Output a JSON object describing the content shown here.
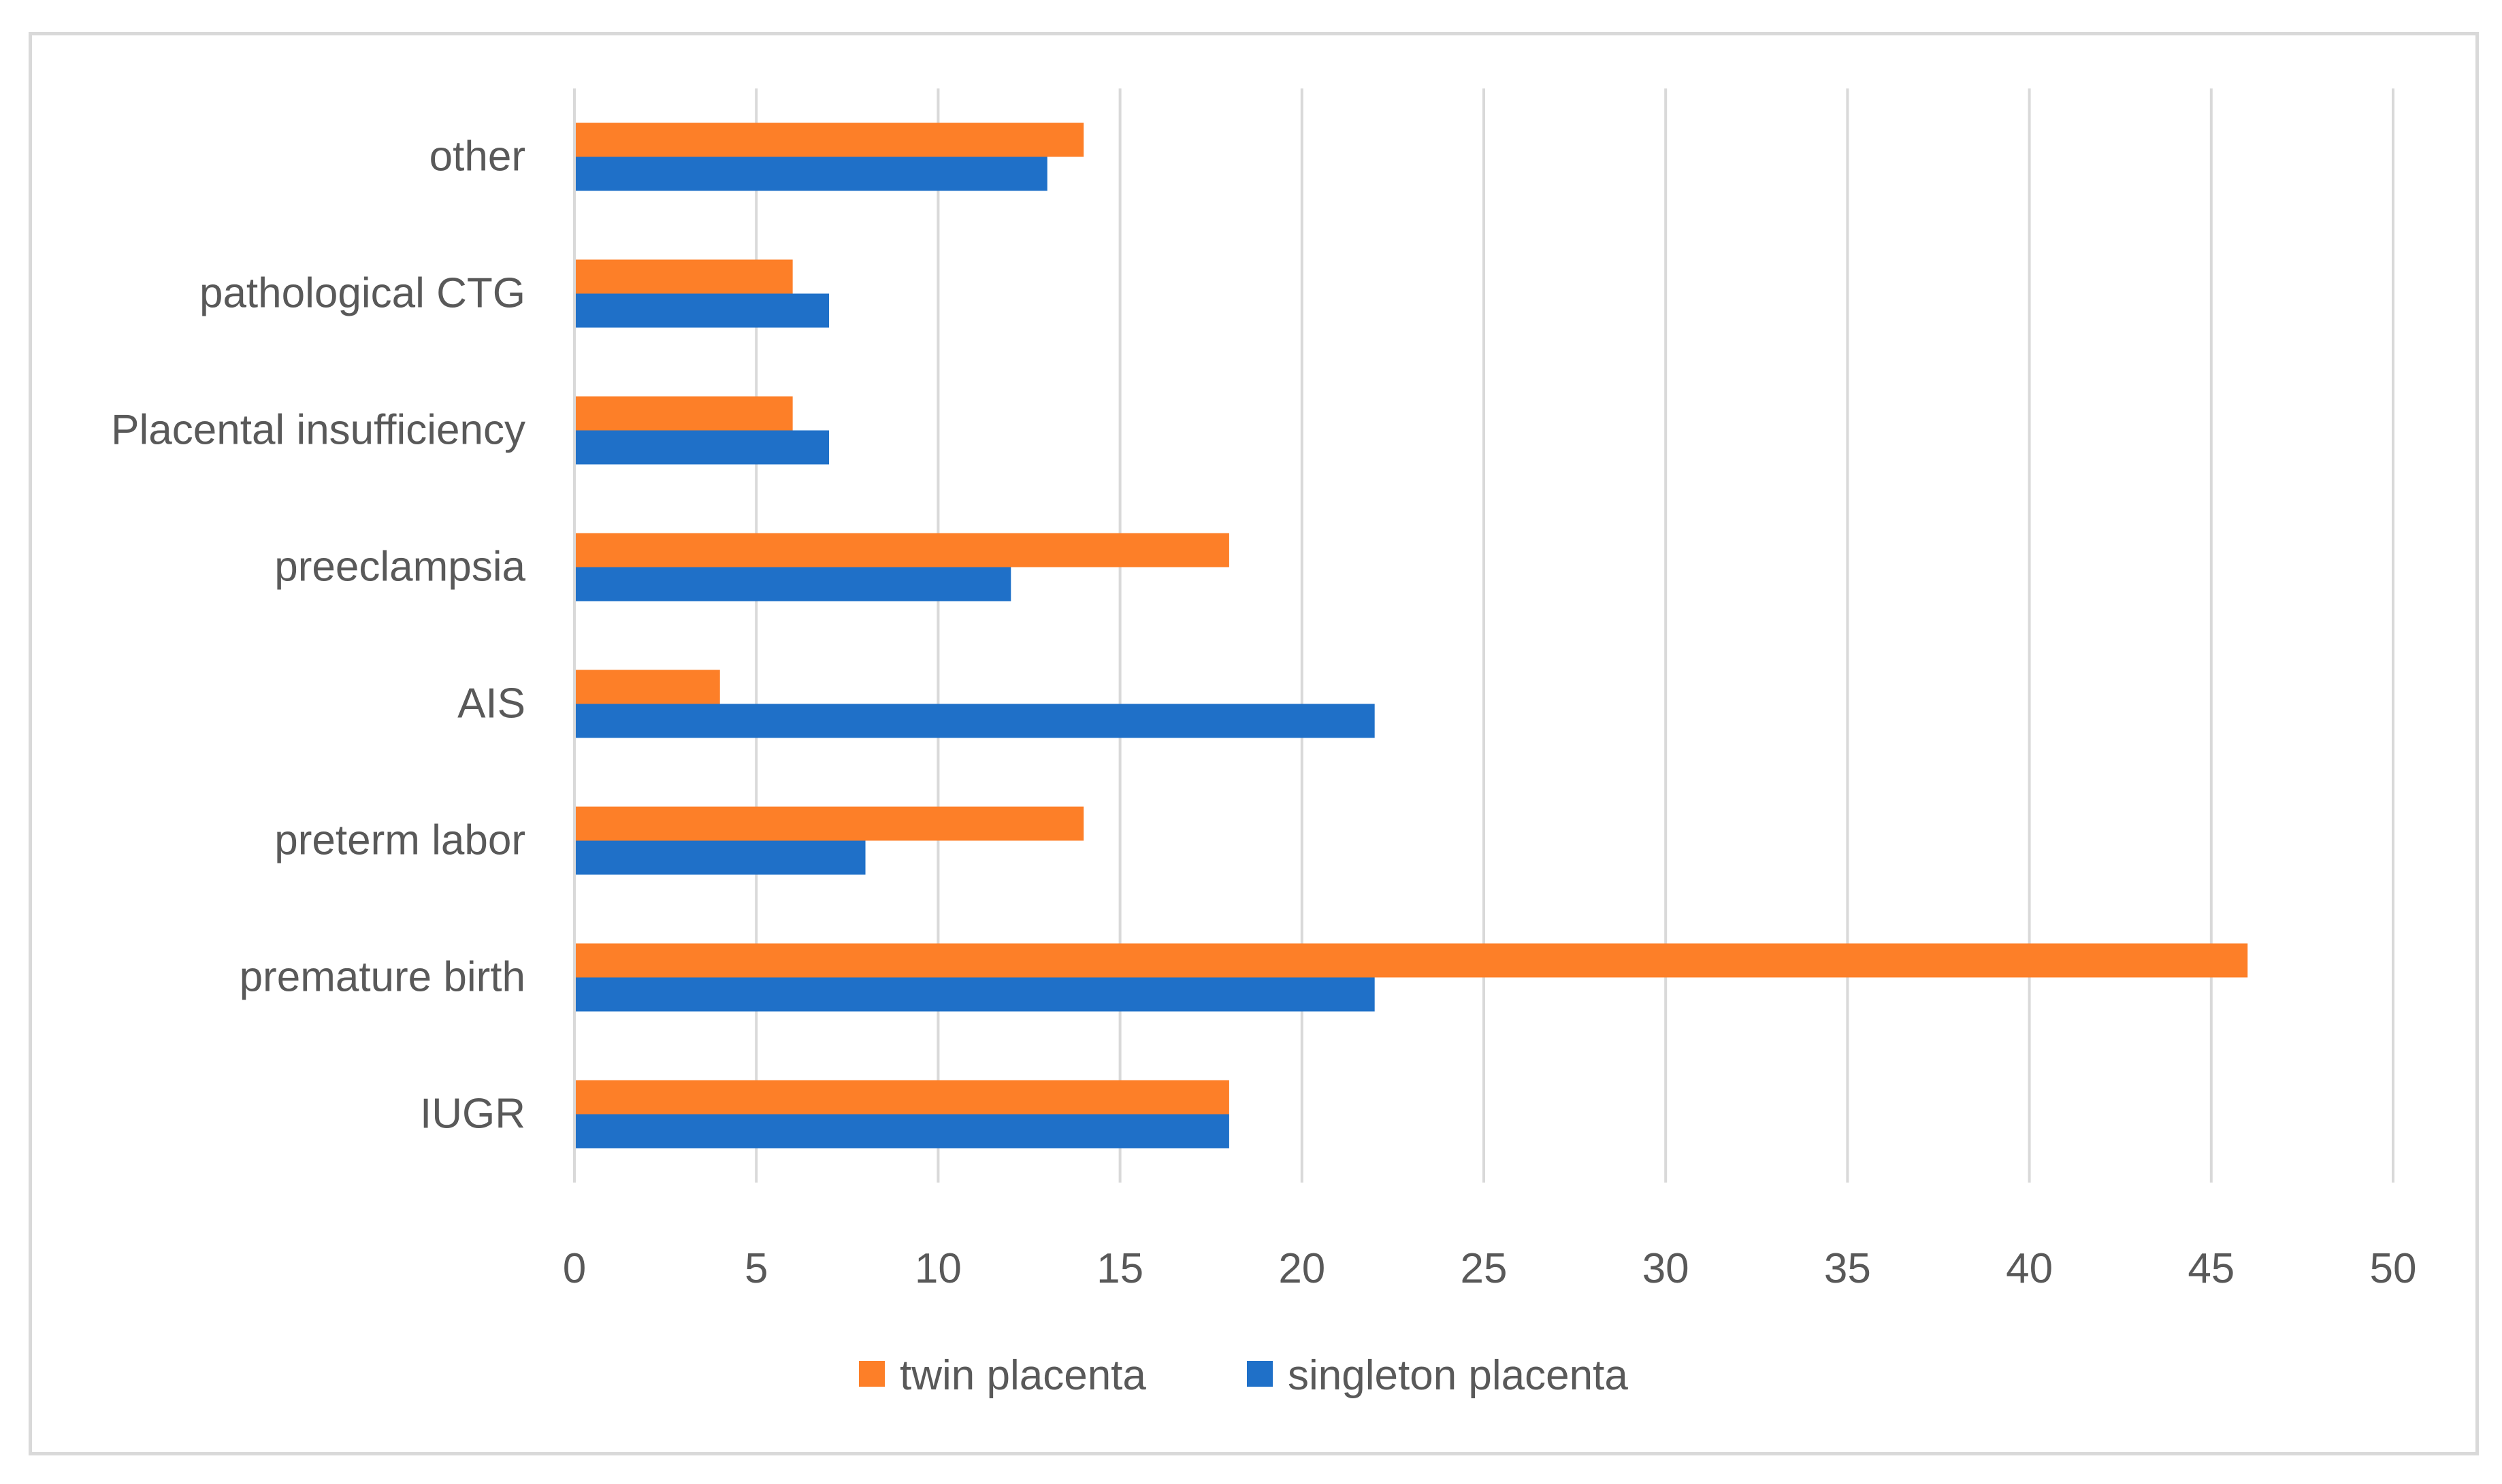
{
  "chart_data": {
    "type": "bar",
    "orientation": "horizontal",
    "title": "",
    "xlabel": "",
    "ylabel": "",
    "categories": [
      "IUGR",
      "premature birth",
      "preterm labor",
      "AIS",
      "preeclampsia",
      "Placental insufficiency",
      "pathological CTG",
      "other"
    ],
    "series": [
      {
        "name": "twin placenta",
        "color": "#fd7f28",
        "values": [
          18,
          46,
          14,
          4,
          18,
          6,
          6,
          14
        ]
      },
      {
        "name": "singleton placenta",
        "color": "#1f70c8",
        "values": [
          18,
          22,
          8,
          22,
          12,
          7,
          7,
          13
        ]
      }
    ],
    "xlim": [
      0,
      50
    ],
    "xticks": [
      "0",
      "5",
      "10",
      "15",
      "20",
      "25",
      "30",
      "35",
      "40",
      "45",
      "50"
    ],
    "grid": "vertical",
    "legend": "bottom"
  }
}
